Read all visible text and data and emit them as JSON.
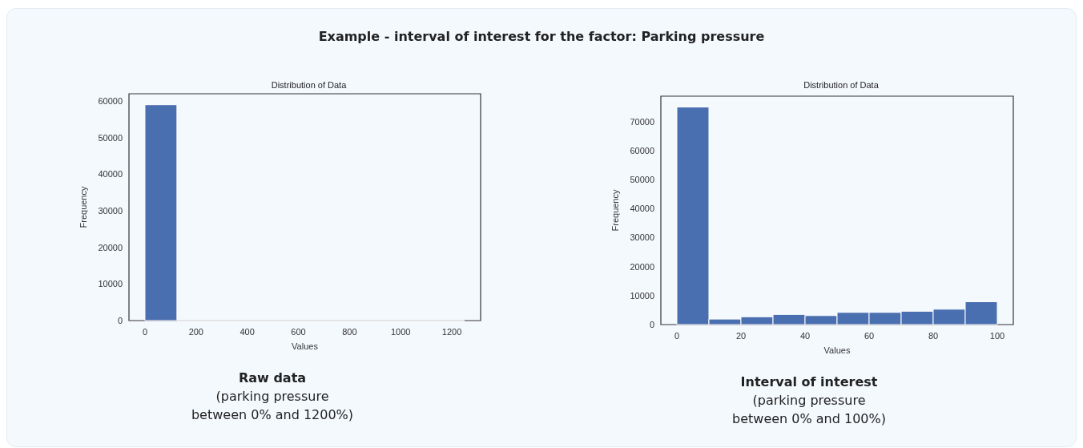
{
  "chart_data": [
    {
      "type": "histogram",
      "title": "Distribution of Data",
      "xlabel": "Values",
      "ylabel": "Frequency",
      "color": "#4a6fb0",
      "bins": [
        0,
        125,
        250,
        375,
        500,
        625,
        750,
        875,
        1000,
        1125,
        1250
      ],
      "values": [
        59000,
        0,
        0,
        0,
        0,
        0,
        0,
        0,
        0,
        0
      ],
      "xlim": [
        -62.5,
        1312.5
      ],
      "xticks": [
        0,
        200,
        400,
        600,
        800,
        1000,
        1200
      ],
      "ylim": [
        0,
        62000
      ],
      "yticks": [
        0,
        10000,
        20000,
        30000,
        40000,
        50000,
        60000
      ],
      "grid": false,
      "annotations": [
        "Example - interval of interest for the factor: Parking pressure",
        "Raw data",
        "(parking pressure",
        "between 0% and 1200%)"
      ]
    },
    {
      "type": "histogram",
      "title": "Distribution of Data",
      "xlabel": "Values",
      "ylabel": "Frequency",
      "color": "#4a6fb0",
      "bins": [
        0,
        10,
        20,
        30,
        40,
        50,
        60,
        70,
        80,
        90,
        100
      ],
      "values": [
        75000,
        1900,
        2700,
        3500,
        3100,
        4200,
        4200,
        4600,
        5300,
        7900
      ],
      "xlim": [
        -5,
        105
      ],
      "xticks": [
        0,
        20,
        40,
        60,
        80,
        100
      ],
      "ylim": [
        0,
        78750
      ],
      "yticks": [
        0,
        10000,
        20000,
        30000,
        40000,
        50000,
        60000,
        70000
      ],
      "grid": false,
      "annotations": [
        "Interval of interest",
        "(parking pressure",
        "between 0% and 100%)"
      ]
    }
  ]
}
